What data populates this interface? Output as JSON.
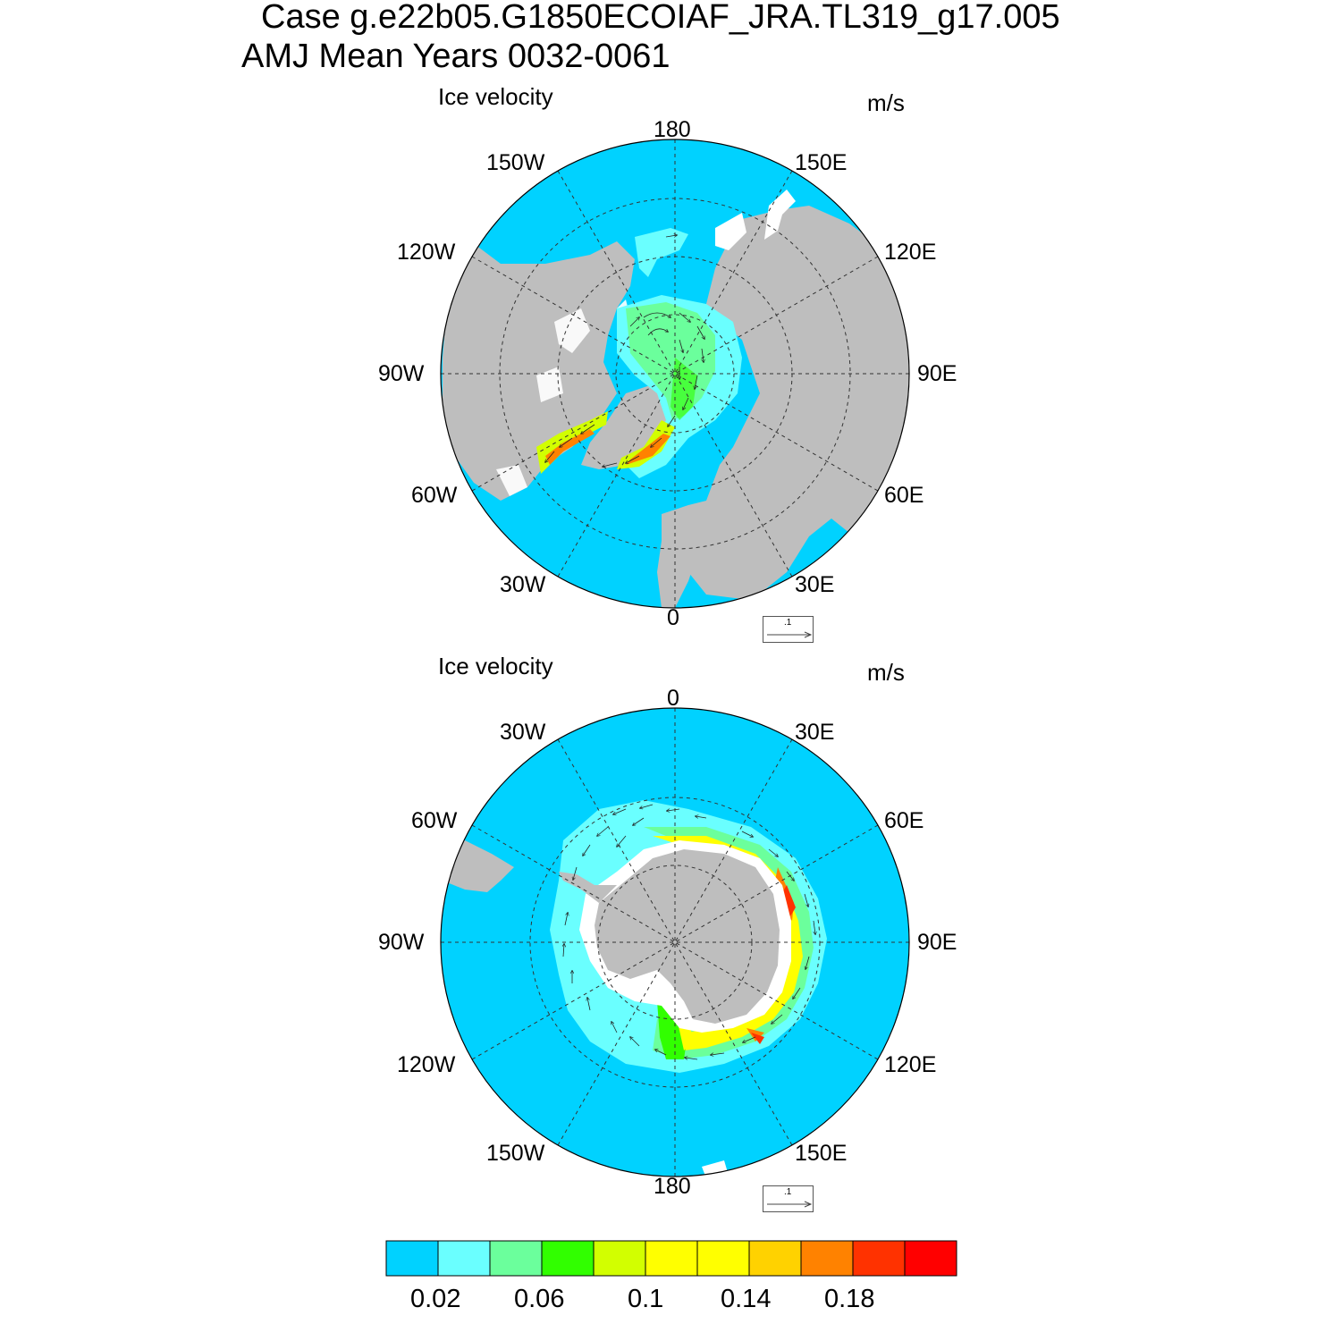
{
  "title": {
    "line1": "Case g.e22b05.G1850ECOIAF_JRA.TL319_g17.005",
    "line2": "AMJ Mean   Years 0032-0061"
  },
  "panels": [
    {
      "hemisphere": "north",
      "title": "Ice velocity",
      "units": "m/s",
      "ref_vector_label": ".1",
      "lon_labels": {
        "top": "180",
        "bottom": "0",
        "left": "90W",
        "right": "90E",
        "ul1": "150W",
        "ul2": "120W",
        "ll1": "60W",
        "ll2": "30W",
        "ur1": "150E",
        "ur2": "120E",
        "lr1": "60E",
        "lr2": "30E"
      }
    },
    {
      "hemisphere": "south",
      "title": "Ice velocity",
      "units": "m/s",
      "ref_vector_label": ".1",
      "lon_labels": {
        "top": "0",
        "bottom": "180",
        "left": "90W",
        "right": "90E",
        "ul1": "30W",
        "ul2": "60W",
        "ll1": "120W",
        "ll2": "150W",
        "ur1": "30E",
        "ur2": "60E",
        "lr1": "120E",
        "lr2": "150E"
      }
    }
  ],
  "colorbar": {
    "colors": [
      "#00d2ff",
      "#6affff",
      "#6bff9c",
      "#31ff00",
      "#d2ff00",
      "#ffff00",
      "#ffff00",
      "#ffd200",
      "#ff8200",
      "#ff3200",
      "#ff0000"
    ],
    "labels": [
      "0.02",
      "0.06",
      "0.1",
      "0.14",
      "0.18"
    ]
  },
  "colors": {
    "ocean": "#00d2ff",
    "land": "#bebebe"
  }
}
